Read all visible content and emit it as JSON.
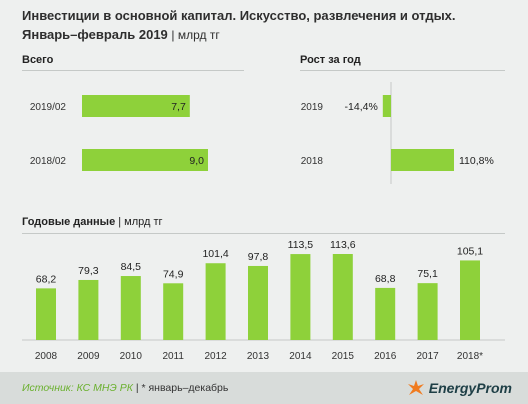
{
  "title": {
    "line1": "Инвестиции в основной капитал. Искусство, развлечения и отдых.",
    "line2": "Январь–февраль 2019",
    "unit": "| млрд тг"
  },
  "sections": {
    "total_label": "Всего",
    "growth_label": "Рост за год",
    "annual_label": "Годовые данные",
    "annual_unit": "| млрд тг"
  },
  "colors": {
    "bar_green": "#8ed13a",
    "background": "#eef0ef",
    "footer_bg": "#d8dcda",
    "source_green": "#6ab02e",
    "logo_dark": "#1e3f46"
  },
  "chart_data": [
    {
      "type": "bar",
      "orientation": "horizontal",
      "categories": [
        "2019/02",
        "2018/02"
      ],
      "values": [
        7.7,
        9.0
      ],
      "data_labels": [
        "7,7",
        "9,0"
      ]
    },
    {
      "type": "bar",
      "orientation": "horizontal",
      "categories": [
        "2019",
        "2018"
      ],
      "values": [
        -14.4,
        110.8
      ],
      "data_labels": [
        "-14,4%",
        "110,8%"
      ]
    },
    {
      "type": "bar",
      "orientation": "vertical",
      "categories": [
        "2008",
        "2009",
        "2010",
        "2011",
        "2012",
        "2013",
        "2014",
        "2015",
        "2016",
        "2017",
        "2018*"
      ],
      "values": [
        68.2,
        79.3,
        84.5,
        74.9,
        101.4,
        97.8,
        113.5,
        113.6,
        68.8,
        75.1,
        105.1
      ],
      "data_labels": [
        "68,2",
        "79,3",
        "84,5",
        "74,9",
        "101,4",
        "97,8",
        "113,5",
        "113,6",
        "68,8",
        "75,1",
        "105,1"
      ]
    }
  ],
  "footer": {
    "source_label": "Источник: КС МНЭ РК",
    "note": " | * январь–декабрь",
    "logo_text": "EnergyProm",
    "logo_icon": "energyprom-logo-icon"
  }
}
